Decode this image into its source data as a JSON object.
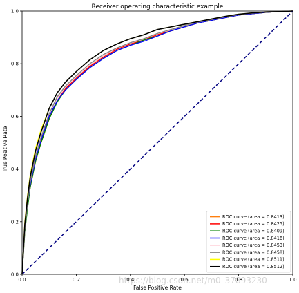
{
  "chart_data": {
    "type": "line",
    "title": "Receiver operating characteristic example",
    "xlabel": "False Positive Rate",
    "ylabel": "True Positive Rate",
    "xlim": [
      0.0,
      1.0
    ],
    "ylim": [
      0.0,
      1.0
    ],
    "xticks": [
      "0.0",
      "0.2",
      "0.4",
      "0.6",
      "0.8",
      "1.0"
    ],
    "yticks": [
      "0.0",
      "0.2",
      "0.4",
      "0.6",
      "0.8",
      "1.0"
    ],
    "grid": false,
    "legend_position": "lower-right",
    "watermark": "https://blog.csdn.net/m0_37893230",
    "series": [
      {
        "name": "ROC curve (area = 0.8413)",
        "color": "#ff7f0e",
        "x": [
          0,
          0.01,
          0.02,
          0.03,
          0.05,
          0.07,
          0.1,
          0.13,
          0.16,
          0.2,
          0.25,
          0.3,
          0.35,
          0.4,
          0.45,
          0.5,
          0.55,
          0.6,
          0.65,
          0.7,
          0.75,
          0.8,
          0.85,
          0.9,
          0.95,
          1.0
        ],
        "y": [
          0,
          0.17,
          0.26,
          0.33,
          0.43,
          0.5,
          0.59,
          0.66,
          0.7,
          0.74,
          0.79,
          0.825,
          0.85,
          0.87,
          0.89,
          0.91,
          0.925,
          0.94,
          0.955,
          0.965,
          0.975,
          0.985,
          0.99,
          0.995,
          0.998,
          1.0
        ]
      },
      {
        "name": "ROC curve (area = 0.8425)",
        "color": "#ff0000",
        "x": [
          0,
          0.01,
          0.02,
          0.03,
          0.05,
          0.07,
          0.1,
          0.13,
          0.16,
          0.2,
          0.25,
          0.3,
          0.35,
          0.4,
          0.45,
          0.5,
          0.55,
          0.6,
          0.65,
          0.7,
          0.75,
          0.8,
          0.85,
          0.9,
          0.95,
          1.0
        ],
        "y": [
          0,
          0.17,
          0.26,
          0.34,
          0.44,
          0.51,
          0.6,
          0.66,
          0.705,
          0.745,
          0.79,
          0.825,
          0.855,
          0.875,
          0.89,
          0.91,
          0.925,
          0.94,
          0.955,
          0.965,
          0.975,
          0.985,
          0.99,
          0.995,
          0.998,
          1.0
        ]
      },
      {
        "name": "ROC curve (area = 0.8409)",
        "color": "#008000",
        "x": [
          0,
          0.01,
          0.02,
          0.03,
          0.05,
          0.07,
          0.1,
          0.13,
          0.16,
          0.2,
          0.25,
          0.3,
          0.35,
          0.4,
          0.45,
          0.5,
          0.55,
          0.6,
          0.65,
          0.7,
          0.75,
          0.8,
          0.85,
          0.9,
          0.95,
          1.0
        ],
        "y": [
          0,
          0.16,
          0.25,
          0.33,
          0.43,
          0.5,
          0.59,
          0.655,
          0.7,
          0.74,
          0.785,
          0.82,
          0.85,
          0.87,
          0.89,
          0.905,
          0.925,
          0.94,
          0.955,
          0.965,
          0.975,
          0.985,
          0.99,
          0.995,
          0.998,
          1.0
        ]
      },
      {
        "name": "ROC curve (area = 0.8416)",
        "color": "#0000ff",
        "x": [
          0,
          0.01,
          0.02,
          0.03,
          0.05,
          0.07,
          0.1,
          0.13,
          0.16,
          0.2,
          0.25,
          0.3,
          0.35,
          0.4,
          0.45,
          0.5,
          0.55,
          0.6,
          0.65,
          0.7,
          0.75,
          0.8,
          0.85,
          0.9,
          0.95,
          1.0
        ],
        "y": [
          0,
          0.18,
          0.27,
          0.34,
          0.44,
          0.51,
          0.6,
          0.66,
          0.7,
          0.74,
          0.785,
          0.82,
          0.85,
          0.87,
          0.885,
          0.905,
          0.925,
          0.94,
          0.955,
          0.965,
          0.975,
          0.985,
          0.99,
          0.995,
          0.998,
          1.0
        ]
      },
      {
        "name": "ROC curve (area = 0.8453)",
        "color": "#ffc0cb",
        "x": [
          0,
          0.01,
          0.02,
          0.03,
          0.05,
          0.07,
          0.1,
          0.13,
          0.16,
          0.2,
          0.25,
          0.3,
          0.35,
          0.4,
          0.45,
          0.5,
          0.55,
          0.6,
          0.65,
          0.7,
          0.75,
          0.8,
          0.85,
          0.9,
          0.95,
          1.0
        ],
        "y": [
          0,
          0.17,
          0.27,
          0.35,
          0.45,
          0.52,
          0.61,
          0.67,
          0.71,
          0.75,
          0.795,
          0.83,
          0.86,
          0.88,
          0.895,
          0.915,
          0.93,
          0.945,
          0.958,
          0.968,
          0.978,
          0.987,
          0.992,
          0.996,
          0.998,
          1.0
        ]
      },
      {
        "name": "ROC curve (area = 0.8458)",
        "color": "#808080",
        "x": [
          0,
          0.01,
          0.02,
          0.03,
          0.05,
          0.07,
          0.1,
          0.13,
          0.16,
          0.2,
          0.25,
          0.3,
          0.35,
          0.4,
          0.45,
          0.5,
          0.55,
          0.6,
          0.65,
          0.7,
          0.75,
          0.8,
          0.85,
          0.9,
          0.95,
          1.0
        ],
        "y": [
          0,
          0.17,
          0.27,
          0.35,
          0.45,
          0.52,
          0.61,
          0.675,
          0.715,
          0.755,
          0.8,
          0.835,
          0.86,
          0.88,
          0.895,
          0.915,
          0.93,
          0.945,
          0.958,
          0.968,
          0.978,
          0.987,
          0.992,
          0.996,
          0.998,
          1.0
        ]
      },
      {
        "name": "ROC curve (area = 0.8511)",
        "color": "#ffff00",
        "x": [
          0,
          0.01,
          0.02,
          0.03,
          0.05,
          0.07,
          0.1,
          0.13,
          0.16,
          0.2,
          0.25,
          0.3,
          0.35,
          0.4,
          0.45,
          0.5,
          0.55,
          0.6,
          0.65,
          0.7,
          0.75,
          0.8,
          0.85,
          0.9,
          0.95,
          1.0
        ],
        "y": [
          0,
          0.2,
          0.3,
          0.38,
          0.48,
          0.55,
          0.63,
          0.69,
          0.73,
          0.77,
          0.815,
          0.85,
          0.875,
          0.895,
          0.91,
          0.93,
          0.94,
          0.95,
          0.96,
          0.97,
          0.98,
          0.988,
          0.993,
          0.996,
          0.998,
          1.0
        ]
      },
      {
        "name": "ROC curve (area = 0.8512)",
        "color": "#000000",
        "x": [
          0,
          0.01,
          0.02,
          0.03,
          0.05,
          0.07,
          0.1,
          0.13,
          0.16,
          0.2,
          0.25,
          0.3,
          0.35,
          0.4,
          0.45,
          0.5,
          0.55,
          0.6,
          0.65,
          0.7,
          0.75,
          0.8,
          0.85,
          0.9,
          0.95,
          1.0
        ],
        "y": [
          0,
          0.19,
          0.29,
          0.37,
          0.47,
          0.54,
          0.63,
          0.69,
          0.73,
          0.77,
          0.815,
          0.85,
          0.875,
          0.895,
          0.91,
          0.93,
          0.94,
          0.95,
          0.96,
          0.97,
          0.98,
          0.988,
          0.993,
          0.996,
          0.998,
          1.0
        ]
      }
    ],
    "reference_line": {
      "color": "#000080",
      "style": "dashed",
      "x": [
        0,
        1
      ],
      "y": [
        0,
        1
      ]
    }
  }
}
